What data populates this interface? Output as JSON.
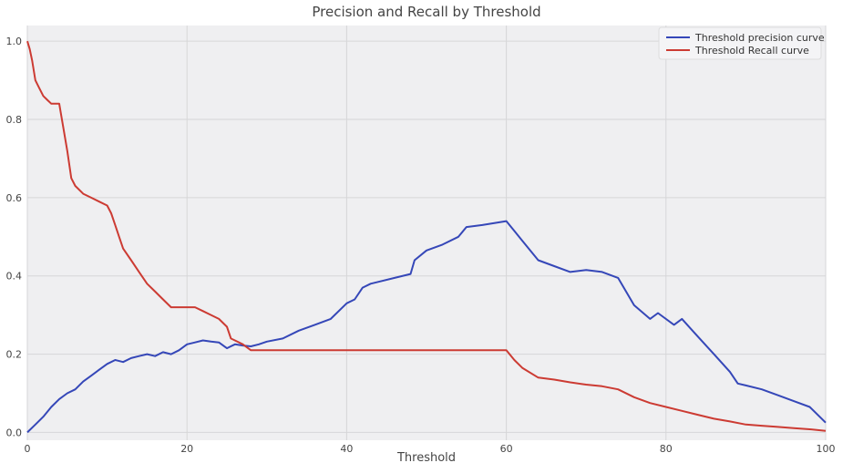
{
  "chart_data": {
    "type": "line",
    "title": "Precision and Recall by Threshold",
    "xlabel": "Threshold",
    "ylabel": "",
    "xlim": [
      0,
      100
    ],
    "ylim": [
      -0.02,
      1.04
    ],
    "xticks": [
      0,
      20,
      40,
      60,
      80,
      100
    ],
    "xtick_labels": [
      "0",
      "20",
      "40",
      "60",
      "80",
      "100"
    ],
    "yticks": [
      0.0,
      0.2,
      0.4,
      0.6,
      0.8,
      1.0
    ],
    "ytick_labels": [
      "0.0",
      "0.2",
      "0.4",
      "0.6",
      "0.8",
      "1.0"
    ],
    "grid": true,
    "legend_position": "top-right",
    "series": [
      {
        "name": "Threshold precision curve",
        "color": "#3547b8",
        "x": [
          0,
          1,
          2,
          3,
          4,
          5,
          6,
          7,
          8,
          9,
          10,
          11,
          12,
          13,
          14,
          15,
          16,
          17,
          18,
          19,
          20,
          21,
          22,
          23,
          24,
          25,
          26,
          27,
          28,
          29,
          30,
          32,
          34,
          36,
          38,
          40,
          41,
          42,
          43,
          44,
          46,
          48,
          48.5,
          50,
          52,
          54,
          55,
          57,
          60,
          61,
          62,
          64,
          66,
          68,
          70,
          72,
          74,
          76,
          78,
          79,
          81,
          82,
          84,
          86,
          88,
          89,
          90,
          92,
          94,
          96,
          98,
          100
        ],
        "y": [
          0.0,
          0.02,
          0.04,
          0.065,
          0.085,
          0.1,
          0.11,
          0.13,
          0.145,
          0.16,
          0.175,
          0.185,
          0.18,
          0.19,
          0.195,
          0.2,
          0.195,
          0.205,
          0.2,
          0.21,
          0.225,
          0.23,
          0.235,
          0.232,
          0.23,
          0.215,
          0.225,
          0.222,
          0.22,
          0.225,
          0.232,
          0.24,
          0.26,
          0.275,
          0.29,
          0.33,
          0.34,
          0.37,
          0.38,
          0.385,
          0.395,
          0.405,
          0.44,
          0.465,
          0.48,
          0.5,
          0.525,
          0.53,
          0.54,
          0.515,
          0.49,
          0.44,
          0.425,
          0.41,
          0.415,
          0.41,
          0.395,
          0.325,
          0.29,
          0.305,
          0.275,
          0.29,
          0.245,
          0.2,
          0.155,
          0.125,
          0.12,
          0.11,
          0.095,
          0.08,
          0.065,
          0.025
        ]
      },
      {
        "name": "Threshold Recall curve",
        "color": "#cc3b33",
        "x": [
          0,
          0.3,
          0.6,
          1,
          1.5,
          2,
          2.5,
          3,
          3.5,
          4,
          4.5,
          5,
          5.5,
          6,
          7,
          8,
          9,
          10,
          10.5,
          11,
          11.5,
          12,
          13,
          14,
          15,
          16,
          17,
          18,
          19,
          20,
          21,
          22,
          23,
          24,
          25,
          25.5,
          26,
          27,
          28,
          30,
          35,
          40,
          45,
          50,
          55,
          58,
          60,
          61,
          62,
          64,
          66,
          68,
          70,
          72,
          74,
          76,
          78,
          80,
          82,
          84,
          86,
          88,
          90,
          92,
          94,
          96,
          98,
          100
        ],
        "y": [
          1.0,
          0.98,
          0.95,
          0.9,
          0.88,
          0.86,
          0.85,
          0.84,
          0.84,
          0.84,
          0.78,
          0.72,
          0.65,
          0.63,
          0.61,
          0.6,
          0.59,
          0.58,
          0.56,
          0.53,
          0.5,
          0.47,
          0.44,
          0.41,
          0.38,
          0.36,
          0.34,
          0.32,
          0.32,
          0.32,
          0.32,
          0.31,
          0.3,
          0.29,
          0.27,
          0.24,
          0.235,
          0.225,
          0.21,
          0.21,
          0.21,
          0.21,
          0.21,
          0.21,
          0.21,
          0.21,
          0.21,
          0.185,
          0.165,
          0.14,
          0.135,
          0.128,
          0.122,
          0.118,
          0.11,
          0.09,
          0.075,
          0.065,
          0.055,
          0.045,
          0.035,
          0.028,
          0.02,
          0.017,
          0.014,
          0.011,
          0.008,
          0.004
        ]
      }
    ]
  }
}
